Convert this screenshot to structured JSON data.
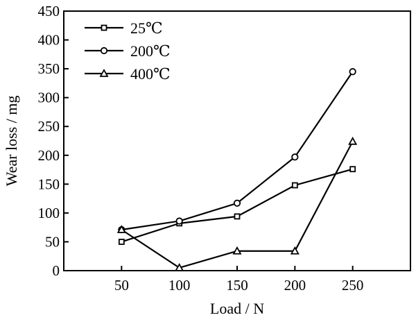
{
  "chart_data": {
    "type": "line",
    "title": "",
    "xlabel": "Load / N",
    "ylabel": "Wear loss / mg",
    "x": [
      50,
      100,
      150,
      200,
      250
    ],
    "xlim": [
      0,
      300
    ],
    "ylim": [
      0,
      450
    ],
    "xticks": [
      50,
      100,
      150,
      200,
      250
    ],
    "yticks": [
      0,
      50,
      100,
      150,
      200,
      250,
      300,
      350,
      400,
      450
    ],
    "grid": false,
    "legend_position": "top-left",
    "series": [
      {
        "name": "25℃",
        "marker": "square",
        "values": [
          50,
          82,
          94,
          148,
          176
        ]
      },
      {
        "name": "200℃",
        "marker": "circle",
        "values": [
          71,
          86,
          117,
          197,
          345
        ]
      },
      {
        "name": "400℃",
        "marker": "triangle",
        "values": [
          71,
          5,
          34,
          34,
          224
        ]
      }
    ]
  }
}
